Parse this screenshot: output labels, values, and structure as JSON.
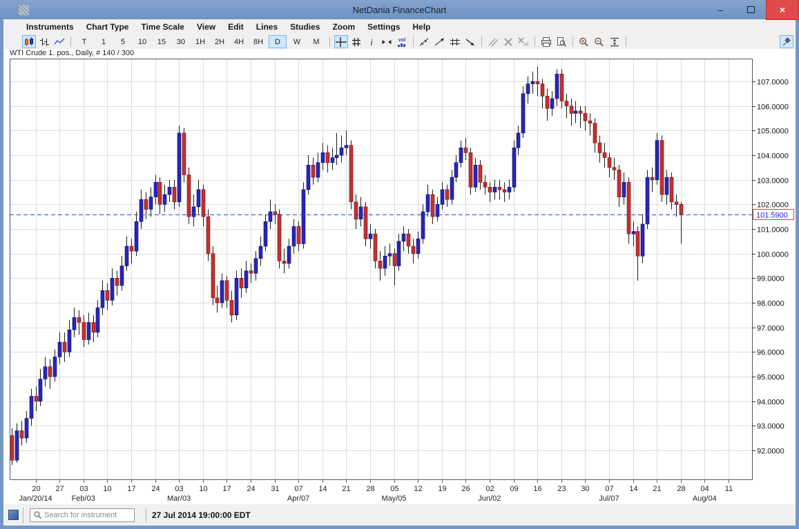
{
  "window": {
    "title": "NetDania FinanceChart",
    "controls": {
      "minimize": "–",
      "maximize": "",
      "close": "×"
    }
  },
  "menu": {
    "items": [
      "Instruments",
      "Chart Type",
      "Time Scale",
      "View",
      "Edit",
      "Lines",
      "Studies",
      "Zoom",
      "Settings",
      "Help"
    ]
  },
  "toolbar": {
    "chart_type_buttons": [
      {
        "name": "candlestick-chart",
        "selected": true
      },
      {
        "name": "ohlc-bars",
        "selected": false
      },
      {
        "name": "line-chart",
        "selected": false
      }
    ],
    "timescales": [
      "T",
      "1",
      "5",
      "10",
      "15",
      "30",
      "1H",
      "2H",
      "4H",
      "8H",
      "D",
      "W",
      "M"
    ],
    "selected_timescale": "D",
    "tool_buttons": [
      {
        "name": "crosshair",
        "selected": true
      },
      {
        "name": "grid",
        "selected": false
      },
      {
        "name": "info",
        "selected": false
      },
      {
        "name": "horizontal-scale",
        "selected": false
      },
      {
        "name": "volume",
        "selected": false
      }
    ],
    "line_tools": [
      {
        "name": "trendline"
      },
      {
        "name": "trendline-ray"
      },
      {
        "name": "horizontal-lines"
      },
      {
        "name": "arrow-line"
      }
    ],
    "edit_tools": [
      {
        "name": "parallel-lines",
        "disabled": true
      },
      {
        "name": "delete-line",
        "disabled": true
      },
      {
        "name": "delete-all-lines",
        "disabled": true
      }
    ],
    "print_tools": [
      {
        "name": "print"
      },
      {
        "name": "print-preview"
      }
    ],
    "zoom_tools": [
      {
        "name": "zoom-in"
      },
      {
        "name": "zoom-out"
      },
      {
        "name": "fit-vertical"
      }
    ],
    "pin_button": {
      "name": "pin",
      "selected": true
    }
  },
  "chart": {
    "legend": "WTI Crude 1. pos., Daily, # 140 / 300",
    "last_price_label": "101.5900"
  },
  "chart_data": {
    "type": "candlestick",
    "instrument": "WTI Crude 1. pos.",
    "timeframe": "Daily",
    "bars_shown": "140 / 300",
    "last_price": 101.59,
    "ylim": [
      90.8,
      107.9
    ],
    "y_tick_labels": [
      "107.0000",
      "106.0000",
      "105.0000",
      "104.0000",
      "103.0000",
      "102.0000",
      "101.0000",
      "100.0000",
      "99.0000",
      "98.0000",
      "97.0000",
      "96.0000",
      "95.0000",
      "94.0000",
      "93.0000",
      "92.0000"
    ],
    "x_week_labels": [
      "20",
      "27",
      "03",
      "10",
      "17",
      "24",
      "03",
      "10",
      "17",
      "24",
      "31",
      "07",
      "14",
      "21",
      "28",
      "05",
      "12",
      "19",
      "26",
      "02",
      "09",
      "16",
      "23",
      "30",
      "07",
      "14",
      "21",
      "28",
      "04",
      "11"
    ],
    "x_month_labels": [
      {
        "label": "Jan/20/14",
        "week": 0
      },
      {
        "label": "Feb/03",
        "week": 2
      },
      {
        "label": "Mar/03",
        "week": 6
      },
      {
        "label": "Apr/07",
        "week": 11
      },
      {
        "label": "May/05",
        "week": 15
      },
      {
        "label": "Jun/02",
        "week": 19
      },
      {
        "label": "Jul/07",
        "week": 24
      },
      {
        "label": "Aug/04",
        "week": 28
      }
    ],
    "colors": {
      "up": "#2626b8",
      "down": "#c43030",
      "up_edge": "#10106a",
      "down_edge": "#6e1010",
      "wick": "#1a1a1a",
      "last_price_line": "#2946d0",
      "last_price_text": "#2222cc",
      "last_price_border": "#cc4444"
    },
    "candles": [
      [
        92.6,
        92.9,
        91.4,
        91.6
      ],
      [
        91.6,
        93.1,
        91.5,
        92.8
      ],
      [
        92.8,
        93.2,
        92.2,
        92.5
      ],
      [
        92.5,
        93.6,
        92.3,
        93.3
      ],
      [
        93.3,
        94.5,
        93.0,
        94.2
      ],
      [
        94.2,
        94.6,
        93.6,
        94.0
      ],
      [
        94.0,
        95.3,
        93.8,
        94.9
      ],
      [
        94.9,
        95.8,
        94.6,
        95.4
      ],
      [
        95.4,
        95.7,
        94.5,
        95.0
      ],
      [
        95.0,
        96.1,
        94.8,
        95.8
      ],
      [
        95.8,
        96.8,
        95.5,
        96.4
      ],
      [
        96.4,
        96.8,
        95.6,
        96.0
      ],
      [
        96.0,
        97.3,
        95.8,
        96.9
      ],
      [
        96.9,
        97.8,
        96.6,
        97.4
      ],
      [
        97.4,
        97.7,
        96.7,
        97.2
      ],
      [
        97.2,
        97.5,
        96.2,
        96.5
      ],
      [
        96.5,
        97.6,
        96.3,
        97.2
      ],
      [
        97.2,
        97.5,
        96.4,
        96.8
      ],
      [
        96.8,
        98.1,
        96.6,
        97.8
      ],
      [
        97.8,
        98.9,
        97.5,
        98.5
      ],
      [
        98.5,
        98.8,
        97.7,
        98.1
      ],
      [
        98.1,
        99.4,
        97.9,
        99.0
      ],
      [
        99.0,
        99.3,
        98.3,
        98.7
      ],
      [
        98.7,
        99.9,
        98.5,
        99.5
      ],
      [
        99.5,
        100.7,
        99.3,
        100.3
      ],
      [
        100.3,
        100.6,
        99.6,
        100.1
      ],
      [
        100.1,
        101.7,
        99.9,
        101.3
      ],
      [
        101.3,
        102.6,
        101.0,
        102.2
      ],
      [
        102.2,
        102.5,
        101.4,
        101.8
      ],
      [
        101.8,
        102.7,
        101.5,
        102.3
      ],
      [
        102.3,
        103.2,
        102.0,
        102.9
      ],
      [
        102.9,
        103.1,
        101.6,
        102.0
      ],
      [
        102.0,
        102.8,
        101.7,
        102.4
      ],
      [
        102.4,
        103.0,
        102.1,
        102.7
      ],
      [
        102.7,
        103.0,
        101.8,
        102.1
      ],
      [
        102.1,
        105.2,
        101.9,
        104.9
      ],
      [
        104.9,
        105.1,
        102.9,
        103.2
      ],
      [
        103.2,
        103.5,
        101.2,
        101.5
      ],
      [
        101.5,
        102.4,
        101.1,
        101.9
      ],
      [
        101.9,
        103.0,
        101.6,
        102.6
      ],
      [
        102.6,
        102.8,
        101.1,
        101.5
      ],
      [
        101.5,
        101.8,
        99.7,
        100.0
      ],
      [
        100.0,
        100.3,
        97.9,
        98.2
      ],
      [
        98.2,
        98.7,
        97.6,
        98.0
      ],
      [
        98.0,
        99.2,
        97.8,
        98.9
      ],
      [
        98.9,
        99.1,
        97.8,
        98.1
      ],
      [
        98.1,
        98.5,
        97.2,
        97.5
      ],
      [
        97.5,
        99.3,
        97.3,
        99.0
      ],
      [
        99.0,
        99.4,
        98.2,
        98.6
      ],
      [
        98.6,
        99.7,
        98.4,
        99.3
      ],
      [
        99.3,
        99.6,
        98.8,
        99.2
      ],
      [
        99.2,
        100.1,
        98.9,
        99.8
      ],
      [
        99.8,
        100.7,
        99.5,
        100.3
      ],
      [
        100.3,
        101.6,
        100.1,
        101.3
      ],
      [
        101.3,
        102.2,
        101.0,
        101.7
      ],
      [
        101.7,
        102.0,
        101.2,
        101.6
      ],
      [
        101.6,
        101.8,
        99.4,
        99.7
      ],
      [
        99.7,
        100.2,
        99.2,
        99.6
      ],
      [
        99.6,
        100.6,
        99.4,
        100.3
      ],
      [
        100.3,
        101.4,
        100.0,
        101.1
      ],
      [
        101.1,
        101.3,
        100.1,
        100.4
      ],
      [
        100.4,
        102.9,
        100.2,
        102.6
      ],
      [
        102.6,
        104.0,
        102.4,
        103.6
      ],
      [
        103.6,
        103.9,
        102.8,
        103.1
      ],
      [
        103.1,
        104.1,
        102.9,
        103.7
      ],
      [
        103.7,
        104.5,
        103.4,
        104.1
      ],
      [
        104.1,
        104.4,
        103.3,
        103.7
      ],
      [
        103.7,
        104.3,
        103.4,
        103.9
      ],
      [
        103.9,
        104.9,
        103.6,
        104.0
      ],
      [
        104.0,
        104.8,
        103.7,
        104.3
      ],
      [
        104.3,
        105.0,
        104.0,
        104.4
      ],
      [
        104.4,
        104.6,
        101.8,
        102.1
      ],
      [
        102.1,
        102.4,
        101.0,
        101.4
      ],
      [
        101.4,
        102.3,
        101.1,
        101.9
      ],
      [
        101.9,
        102.1,
        100.3,
        100.6
      ],
      [
        100.6,
        101.2,
        100.2,
        100.8
      ],
      [
        100.8,
        101.0,
        99.4,
        99.7
      ],
      [
        99.7,
        100.1,
        98.9,
        99.4
      ],
      [
        99.4,
        100.3,
        99.1,
        99.9
      ],
      [
        99.9,
        100.4,
        99.5,
        100.0
      ],
      [
        100.0,
        100.2,
        98.7,
        99.5
      ],
      [
        99.5,
        100.8,
        99.3,
        100.5
      ],
      [
        100.5,
        101.1,
        100.1,
        100.8
      ],
      [
        100.8,
        101.0,
        100.0,
        100.3
      ],
      [
        100.3,
        100.6,
        99.6,
        100.0
      ],
      [
        100.0,
        100.9,
        99.8,
        100.6
      ],
      [
        100.6,
        102.0,
        100.4,
        101.7
      ],
      [
        101.7,
        102.8,
        101.5,
        102.4
      ],
      [
        102.4,
        102.6,
        101.2,
        101.5
      ],
      [
        101.5,
        102.3,
        101.3,
        102.0
      ],
      [
        102.0,
        102.9,
        101.8,
        102.6
      ],
      [
        102.6,
        102.8,
        101.9,
        102.2
      ],
      [
        102.2,
        103.4,
        102.0,
        103.1
      ],
      [
        103.1,
        104.0,
        102.9,
        103.7
      ],
      [
        103.7,
        104.6,
        103.5,
        104.3
      ],
      [
        104.3,
        104.7,
        103.8,
        104.1
      ],
      [
        104.1,
        104.3,
        102.4,
        102.7
      ],
      [
        102.7,
        103.9,
        102.5,
        103.6
      ],
      [
        103.6,
        103.8,
        102.6,
        102.9
      ],
      [
        102.9,
        103.2,
        102.4,
        102.7
      ],
      [
        102.7,
        102.9,
        102.1,
        102.5
      ],
      [
        102.5,
        103.0,
        102.2,
        102.7
      ],
      [
        102.7,
        103.0,
        102.2,
        102.6
      ],
      [
        102.6,
        102.9,
        102.1,
        102.5
      ],
      [
        102.5,
        103.0,
        102.2,
        102.7
      ],
      [
        102.7,
        104.6,
        102.5,
        104.3
      ],
      [
        104.3,
        105.2,
        104.0,
        104.9
      ],
      [
        104.9,
        106.8,
        104.7,
        106.5
      ],
      [
        106.5,
        107.2,
        106.1,
        106.9
      ],
      [
        106.9,
        107.4,
        106.5,
        107.0
      ],
      [
        107.0,
        107.6,
        106.4,
        106.9
      ],
      [
        106.9,
        107.1,
        105.9,
        106.4
      ],
      [
        106.4,
        106.7,
        105.4,
        105.9
      ],
      [
        105.9,
        106.6,
        105.6,
        106.3
      ],
      [
        106.3,
        107.5,
        106.0,
        107.3
      ],
      [
        107.3,
        107.5,
        105.9,
        106.2
      ],
      [
        106.2,
        106.5,
        105.5,
        106.0
      ],
      [
        106.0,
        106.3,
        105.2,
        105.7
      ],
      [
        105.7,
        106.2,
        105.3,
        105.8
      ],
      [
        105.8,
        106.0,
        105.1,
        105.7
      ],
      [
        105.7,
        106.0,
        105.0,
        105.4
      ],
      [
        105.4,
        105.7,
        104.8,
        105.3
      ],
      [
        105.3,
        105.5,
        104.1,
        104.5
      ],
      [
        104.5,
        104.8,
        103.7,
        104.1
      ],
      [
        104.1,
        104.5,
        103.5,
        103.9
      ],
      [
        103.9,
        104.1,
        103.1,
        103.5
      ],
      [
        103.5,
        103.9,
        103.0,
        103.4
      ],
      [
        103.4,
        103.6,
        101.9,
        102.3
      ],
      [
        102.3,
        103.3,
        102.0,
        102.9
      ],
      [
        102.9,
        103.1,
        100.4,
        100.8
      ],
      [
        100.8,
        101.3,
        100.3,
        100.9
      ],
      [
        100.9,
        101.1,
        98.9,
        99.9
      ],
      [
        99.9,
        101.6,
        99.6,
        101.2
      ],
      [
        101.2,
        103.4,
        101.0,
        103.1
      ],
      [
        103.1,
        103.5,
        102.5,
        103.0
      ],
      [
        103.0,
        104.9,
        102.8,
        104.6
      ],
      [
        104.6,
        104.8,
        102.1,
        102.4
      ],
      [
        102.4,
        103.4,
        102.0,
        103.1
      ],
      [
        103.1,
        103.3,
        101.8,
        102.1
      ],
      [
        102.1,
        102.4,
        101.5,
        102.0
      ],
      [
        102.0,
        102.1,
        100.4,
        101.59
      ]
    ]
  },
  "statusbar": {
    "search_placeholder": "Search for instrument",
    "timestamp": "27 Jul 2014 19:00:00 EDT"
  }
}
